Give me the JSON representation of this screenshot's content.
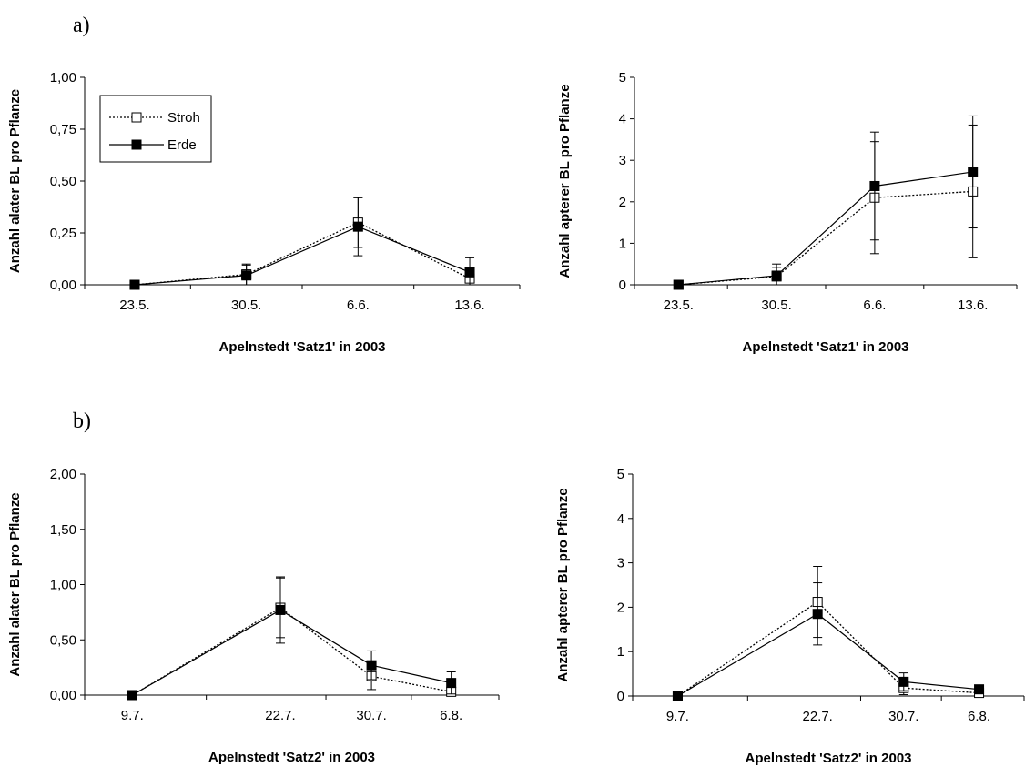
{
  "panel_labels": [
    "a)",
    "b)"
  ],
  "chart_data": [
    {
      "type": "line",
      "panel": "a)",
      "categories": [
        "23.5.",
        "30.5.",
        "6.6.",
        "13.6."
      ],
      "x_days": [
        0,
        7,
        14,
        21
      ],
      "xlabel": "Apelnstedt 'Satz1' in 2003",
      "ylabel": "Anzahl alater BL pro Pflanze",
      "ylim": [
        0,
        1
      ],
      "yticks": [
        "0,00",
        "0,25",
        "0,50",
        "0,75",
        "1,00"
      ],
      "grid": false,
      "legend": {
        "position": "top-left",
        "entries": [
          "Stroh",
          "Erde"
        ]
      },
      "series": [
        {
          "name": "Stroh",
          "style": "dotted-open-square",
          "values": [
            0.0,
            0.05,
            0.3,
            0.03
          ],
          "err": [
            0.0,
            0.05,
            0.12,
            0.04
          ]
        },
        {
          "name": "Erde",
          "style": "solid-filled-square",
          "values": [
            0.0,
            0.045,
            0.28,
            0.06
          ],
          "err": [
            0.0,
            0.05,
            0.14,
            0.07
          ]
        }
      ]
    },
    {
      "type": "line",
      "panel": "a)",
      "categories": [
        "23.5.",
        "30.5.",
        "6.6.",
        "13.6."
      ],
      "x_days": [
        0,
        7,
        14,
        21
      ],
      "xlabel": "Apelnstedt 'Satz1' in 2003",
      "ylabel": "Anzahl apterer BL pro Pflanze",
      "ylim": [
        0,
        5
      ],
      "yticks": [
        "0",
        "1",
        "2",
        "3",
        "4",
        "5"
      ],
      "grid": false,
      "series": [
        {
          "name": "Stroh",
          "style": "dotted-open-square",
          "values": [
            0.0,
            0.2,
            2.1,
            2.25
          ],
          "err": [
            0.0,
            0.22,
            1.35,
            1.6
          ]
        },
        {
          "name": "Erde",
          "style": "solid-filled-square",
          "values": [
            0.0,
            0.22,
            2.38,
            2.72
          ],
          "err": [
            0.0,
            0.28,
            1.3,
            1.35
          ]
        }
      ]
    },
    {
      "type": "line",
      "panel": "b)",
      "categories": [
        "9.7.",
        "22.7.",
        "30.7.",
        "6.8."
      ],
      "x_days": [
        0,
        13,
        21,
        28
      ],
      "xlabel": "Apelnstedt 'Satz2' in 2003",
      "ylabel": "Anzahl alater BL pro Pflanze",
      "ylim": [
        0,
        2
      ],
      "yticks": [
        "0,00",
        "0,50",
        "1,00",
        "1,50",
        "2,00"
      ],
      "grid": false,
      "series": [
        {
          "name": "Stroh",
          "style": "dotted-open-square",
          "values": [
            0.0,
            0.79,
            0.17,
            0.03
          ],
          "err": [
            0.0,
            0.27,
            0.12,
            0.04
          ]
        },
        {
          "name": "Erde",
          "style": "solid-filled-square",
          "values": [
            0.0,
            0.77,
            0.27,
            0.11
          ],
          "err": [
            0.0,
            0.3,
            0.13,
            0.1
          ]
        }
      ]
    },
    {
      "type": "line",
      "panel": "b)",
      "categories": [
        "9.7.",
        "22.7.",
        "30.7.",
        "6.8."
      ],
      "x_days": [
        0,
        13,
        21,
        28
      ],
      "xlabel": "Apelnstedt 'Satz2' in  2003",
      "ylabel": "Anzahl apterer BL pro Pflanze",
      "ylim": [
        0,
        5
      ],
      "yticks": [
        "0",
        "1",
        "2",
        "3",
        "4",
        "5"
      ],
      "grid": false,
      "series": [
        {
          "name": "Stroh",
          "style": "dotted-open-square",
          "values": [
            0.0,
            2.12,
            0.18,
            0.07
          ],
          "err": [
            0.0,
            0.8,
            0.15,
            0.05
          ]
        },
        {
          "name": "Erde",
          "style": "solid-filled-square",
          "values": [
            0.0,
            1.85,
            0.32,
            0.15
          ],
          "err": [
            0.0,
            0.7,
            0.2,
            0.06
          ]
        }
      ]
    }
  ]
}
